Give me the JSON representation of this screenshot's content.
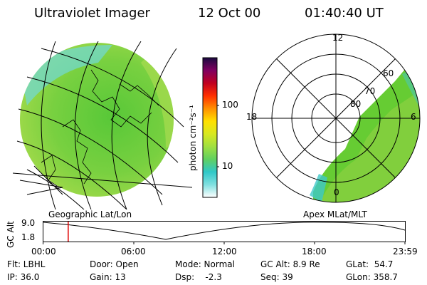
{
  "header": {
    "instrument": "Ultraviolet Imager",
    "date": "12 Oct 00",
    "time": "01:40:40 UT"
  },
  "left_panel": {
    "label": "Geographic Lat/Lon"
  },
  "right_panel": {
    "label": "Apex MLat/MLT",
    "mlt_labels": {
      "top": "12",
      "left": "18",
      "right": "6",
      "bottom": "0"
    },
    "lat_labels": [
      "60",
      "70",
      "80"
    ]
  },
  "colorbar": {
    "unit_label": "photon cm⁻²s⁻¹",
    "ticks": [
      "100",
      "10"
    ],
    "scale": "log",
    "colors": [
      "#ffffff",
      "#80e0e0",
      "#30c8c8",
      "#60d060",
      "#a0e040",
      "#d8e820",
      "#ffe000",
      "#ff9000",
      "#ff3000",
      "#c00020",
      "#800060",
      "#1a0a40"
    ]
  },
  "timeline": {
    "ylabel": "GC Alt",
    "y_ticks": [
      "9.0",
      "1.8"
    ],
    "x_ticks": [
      "00:00",
      "06:00",
      "12:00",
      "18:00",
      "23:59"
    ],
    "current_time_marker": "01:40",
    "marker_color": "#e00000"
  },
  "info": {
    "flt": "Flt: LBHL",
    "ip": "IP: 36.0",
    "door": "Door: Open",
    "gain": "Gain: 13",
    "mode": "Mode: Normal",
    "dsp": "Dsp:    -2.3",
    "gcalt": "GC Alt: 8.9 Re",
    "seq": "Seq: 39",
    "glat": "GLat:  54.7",
    "glon": "GLon: 358.7"
  },
  "colors": {
    "aurora_green": "#66cc33",
    "aurora_cyan": "#40c8c8"
  }
}
